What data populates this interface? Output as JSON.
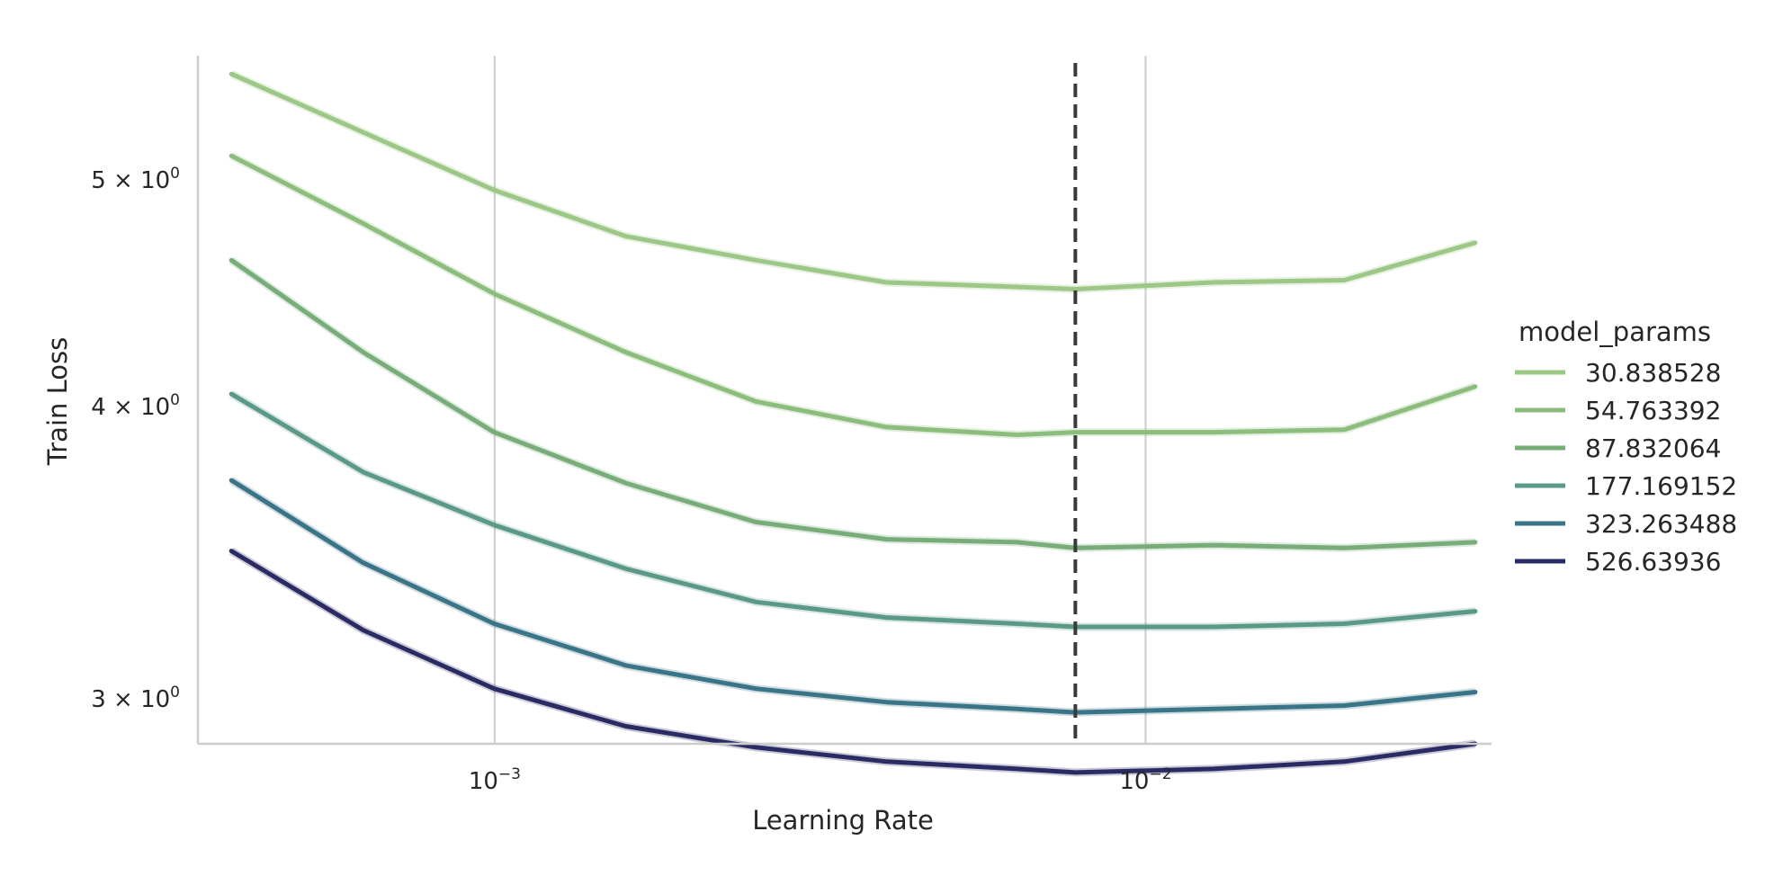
{
  "chart_data": {
    "type": "line",
    "xlabel": "Learning Rate",
    "ylabel": "Train Loss",
    "x_scale": "log",
    "y_scale": "log",
    "xlim": [
      0.00035,
      0.034
    ],
    "ylim": [
      2.87,
      5.65
    ],
    "grid": "vertical only",
    "x_ticks": [
      {
        "value": 0.001,
        "base": "10",
        "exp": "−3"
      },
      {
        "value": 0.01,
        "base": "10",
        "exp": "−2"
      }
    ],
    "y_ticks": [
      {
        "value": 5,
        "mant": "5",
        "times": " × ",
        "base": "10",
        "exp": "0"
      },
      {
        "value": 4,
        "mant": "4",
        "times": " × ",
        "base": "10",
        "exp": "0"
      },
      {
        "value": 3,
        "mant": "3",
        "times": " × ",
        "base": "10",
        "exp": "0"
      }
    ],
    "vline": {
      "x": 0.0078,
      "style": "dashed",
      "color": "#3a3a3a"
    },
    "x": [
      0.0004,
      0.00063,
      0.001,
      0.00159,
      0.00251,
      0.00398,
      0.00631,
      0.01,
      0.01585,
      0.02512,
      0.03981
    ],
    "x_values": [
      0.000394,
      0.000628,
      0.000998,
      0.00159,
      0.00252,
      0.004,
      0.00635,
      0.0078,
      0.0127,
      0.0202,
      0.0321
    ],
    "legend": {
      "title": "model_params",
      "placement": "right"
    },
    "series": [
      {
        "name": "30.838528",
        "color": "#9cc786",
        "values": [
          5.55,
          5.24,
          4.95,
          4.73,
          4.62,
          4.52,
          4.5,
          4.49,
          4.52,
          4.53,
          4.7
        ]
      },
      {
        "name": "54.763392",
        "color": "#8cbd7c",
        "values": [
          5.12,
          4.79,
          4.47,
          4.22,
          4.02,
          3.92,
          3.89,
          3.9,
          3.9,
          3.91,
          4.08
        ]
      },
      {
        "name": "87.832064",
        "color": "#78ad7a",
        "values": [
          4.62,
          4.22,
          3.9,
          3.71,
          3.57,
          3.51,
          3.5,
          3.48,
          3.49,
          3.48,
          3.5
        ]
      },
      {
        "name": "177.169152",
        "color": "#5a9987",
        "values": [
          4.05,
          3.75,
          3.56,
          3.41,
          3.3,
          3.25,
          3.23,
          3.22,
          3.22,
          3.23,
          3.27
        ]
      },
      {
        "name": "323.263488",
        "color": "#3a7487",
        "values": [
          3.72,
          3.43,
          3.23,
          3.1,
          3.03,
          2.99,
          2.97,
          2.96,
          2.97,
          2.98,
          3.02
        ]
      },
      {
        "name": "526.63936",
        "color": "#2b2b63",
        "values": [
          3.47,
          3.21,
          3.03,
          2.92,
          2.86,
          2.82,
          2.8,
          2.79,
          2.8,
          2.82,
          2.87
        ]
      }
    ]
  }
}
